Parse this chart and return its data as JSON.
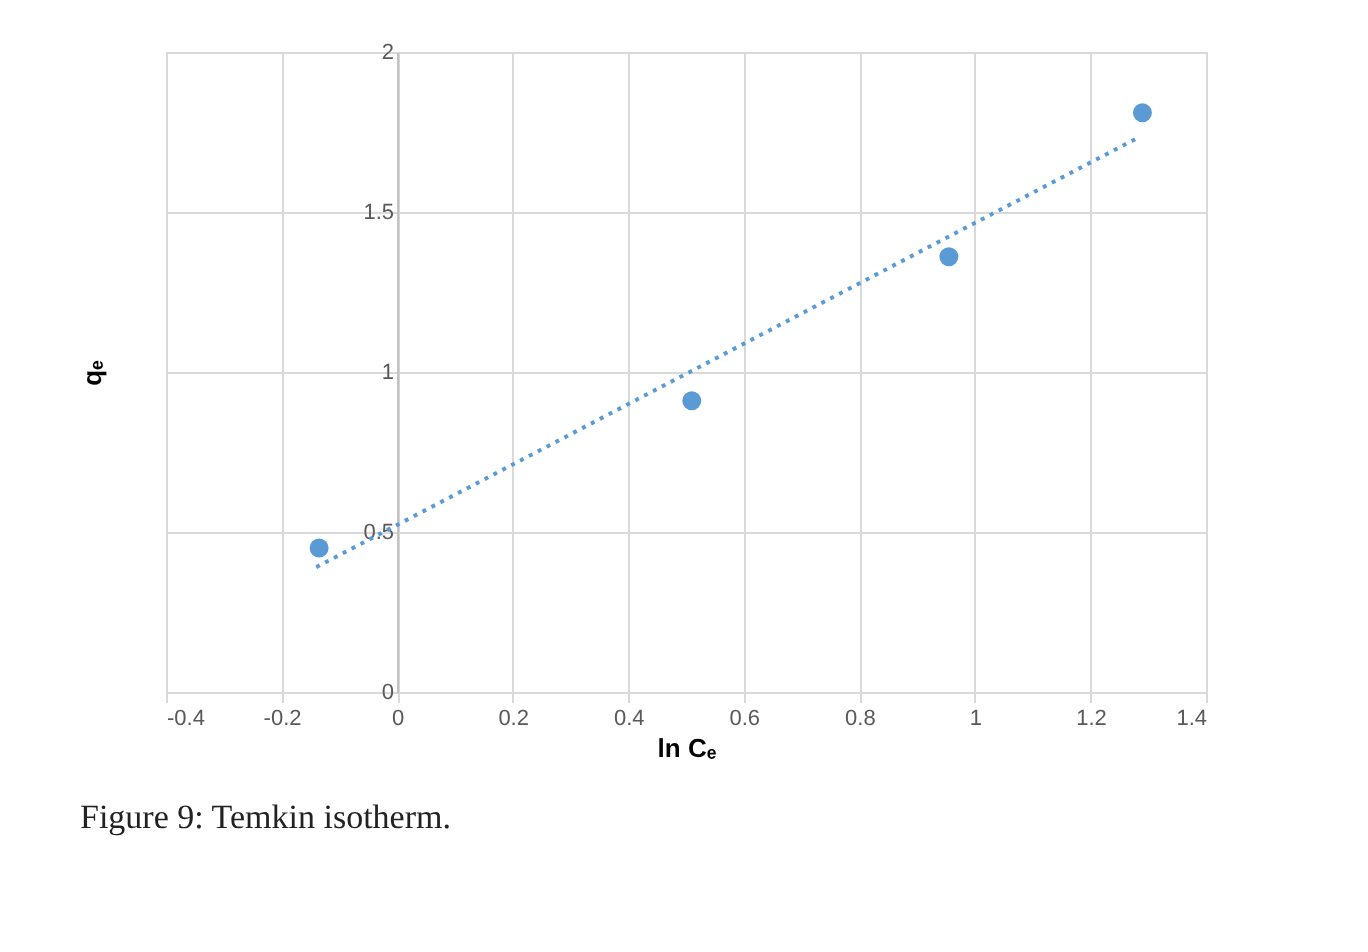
{
  "chart_data": {
    "type": "scatter",
    "xlabel": "ln Cₑ",
    "ylabel": "qₑ",
    "annotations": [
      "Figure 9: Temkin isotherm."
    ],
    "xlim": [
      -0.4,
      1.4
    ],
    "xticks": [
      -0.4,
      -0.2,
      0,
      0.2,
      0.4,
      0.6,
      0.8,
      1,
      1.2,
      1.4
    ],
    "ylim": [
      0,
      2
    ],
    "yticks": [
      0,
      0.5,
      1,
      1.5,
      2
    ],
    "grid": true,
    "series": [
      {
        "type": "scatter",
        "marker": "circle",
        "color": "#5b9bd5",
        "x": [
          -0.135,
          0.51,
          0.955,
          1.29
        ],
        "values": [
          0.45,
          0.91,
          1.36,
          1.81
        ]
      },
      {
        "type": "line",
        "line_style": "dotted",
        "color": "#5b9bd5",
        "x": [
          -0.14,
          1.28
        ],
        "values": [
          0.39,
          1.73
        ]
      }
    ]
  }
}
